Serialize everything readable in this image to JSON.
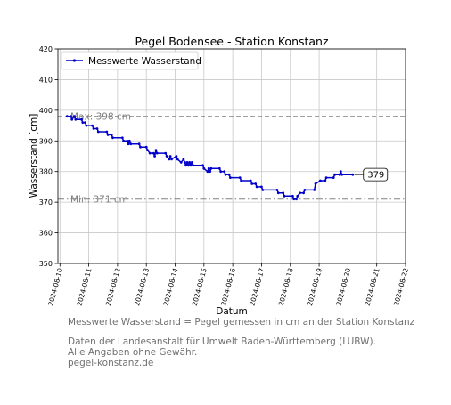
{
  "chart_data": {
    "type": "line",
    "title": "Pegel Bodensee - Station Konstanz",
    "xlabel": "Datum",
    "ylabel": "Wasserstand [cm]",
    "ylim": [
      350,
      420
    ],
    "yticks": [
      "350",
      "360",
      "370",
      "380",
      "390",
      "400",
      "410",
      "420"
    ],
    "xlim": [
      "2024-08-10",
      "2024-08-22"
    ],
    "xticks": [
      "2024-08-10",
      "2024-08-11",
      "2024-08-12",
      "2024-08-13",
      "2024-08-14",
      "2024-08-15",
      "2024-08-16",
      "2024-08-17",
      "2024-08-18",
      "2024-08-19",
      "2024-08-20",
      "2024-08-21",
      "2024-08-22"
    ],
    "grid": true,
    "legend_position": "top-left",
    "series": [
      {
        "name": "Messwerte Wasserstand",
        "color": "#0000cc",
        "marker": "dot",
        "points": [
          [
            "2024-08-10 06:00",
            398
          ],
          [
            "2024-08-10 09:00",
            398
          ],
          [
            "2024-08-10 10:00",
            397
          ],
          [
            "2024-08-10 12:00",
            398
          ],
          [
            "2024-08-10 13:00",
            397
          ],
          [
            "2024-08-10 18:00",
            397
          ],
          [
            "2024-08-10 19:00",
            396
          ],
          [
            "2024-08-10 21:00",
            396
          ],
          [
            "2024-08-10 22:00",
            395
          ],
          [
            "2024-08-11 03:00",
            395
          ],
          [
            "2024-08-11 04:00",
            394
          ],
          [
            "2024-08-11 07:00",
            394
          ],
          [
            "2024-08-11 08:00",
            393
          ],
          [
            "2024-08-11 15:00",
            393
          ],
          [
            "2024-08-11 16:00",
            392
          ],
          [
            "2024-08-11 19:00",
            392
          ],
          [
            "2024-08-11 20:00",
            391
          ],
          [
            "2024-08-12 04:00",
            391
          ],
          [
            "2024-08-12 05:00",
            390
          ],
          [
            "2024-08-12 08:00",
            390
          ],
          [
            "2024-08-12 09:00",
            389
          ],
          [
            "2024-08-12 10:00",
            390
          ],
          [
            "2024-08-12 11:00",
            389
          ],
          [
            "2024-08-12 18:00",
            389
          ],
          [
            "2024-08-12 19:00",
            388
          ],
          [
            "2024-08-13 00:00",
            388
          ],
          [
            "2024-08-13 01:00",
            387
          ],
          [
            "2024-08-13 03:00",
            386
          ],
          [
            "2024-08-13 06:00",
            386
          ],
          [
            "2024-08-13 07:00",
            385
          ],
          [
            "2024-08-13 08:00",
            387
          ],
          [
            "2024-08-13 09:00",
            386
          ],
          [
            "2024-08-13 16:00",
            386
          ],
          [
            "2024-08-13 17:00",
            385
          ],
          [
            "2024-08-13 19:00",
            384
          ],
          [
            "2024-08-13 20:00",
            385
          ],
          [
            "2024-08-13 21:00",
            384
          ],
          [
            "2024-08-14 01:00",
            385
          ],
          [
            "2024-08-14 02:00",
            384
          ],
          [
            "2024-08-14 05:00",
            383
          ],
          [
            "2024-08-14 07:00",
            384
          ],
          [
            "2024-08-14 08:00",
            383
          ],
          [
            "2024-08-14 09:00",
            382
          ],
          [
            "2024-08-14 10:00",
            383
          ],
          [
            "2024-08-14 11:00",
            382
          ],
          [
            "2024-08-14 12:00",
            383
          ],
          [
            "2024-08-14 13:00",
            382
          ],
          [
            "2024-08-14 14:00",
            383
          ],
          [
            "2024-08-14 15:00",
            382
          ],
          [
            "2024-08-14 23:00",
            382
          ],
          [
            "2024-08-15 00:00",
            381
          ],
          [
            "2024-08-15 03:00",
            380
          ],
          [
            "2024-08-15 04:00",
            381
          ],
          [
            "2024-08-15 05:00",
            380
          ],
          [
            "2024-08-15 06:00",
            381
          ],
          [
            "2024-08-15 13:00",
            381
          ],
          [
            "2024-08-15 14:00",
            380
          ],
          [
            "2024-08-15 17:00",
            380
          ],
          [
            "2024-08-15 18:00",
            379
          ],
          [
            "2024-08-15 21:00",
            379
          ],
          [
            "2024-08-15 22:00",
            378
          ],
          [
            "2024-08-16 06:00",
            378
          ],
          [
            "2024-08-16 07:00",
            377
          ],
          [
            "2024-08-16 15:00",
            377
          ],
          [
            "2024-08-16 16:00",
            376
          ],
          [
            "2024-08-16 19:00",
            376
          ],
          [
            "2024-08-16 20:00",
            375
          ],
          [
            "2024-08-17 00:00",
            375
          ],
          [
            "2024-08-17 01:00",
            374
          ],
          [
            "2024-08-17 13:00",
            374
          ],
          [
            "2024-08-17 14:00",
            373
          ],
          [
            "2024-08-17 18:00",
            373
          ],
          [
            "2024-08-17 19:00",
            372
          ],
          [
            "2024-08-18 02:00",
            372
          ],
          [
            "2024-08-18 03:00",
            371
          ],
          [
            "2024-08-18 05:00",
            371
          ],
          [
            "2024-08-18 06:00",
            372
          ],
          [
            "2024-08-18 08:00",
            373
          ],
          [
            "2024-08-18 11:00",
            373
          ],
          [
            "2024-08-18 12:00",
            374
          ],
          [
            "2024-08-18 20:00",
            374
          ],
          [
            "2024-08-18 21:00",
            376
          ],
          [
            "2024-08-19 01:00",
            377
          ],
          [
            "2024-08-19 05:00",
            377
          ],
          [
            "2024-08-19 06:00",
            378
          ],
          [
            "2024-08-19 12:00",
            378
          ],
          [
            "2024-08-19 13:00",
            379
          ],
          [
            "2024-08-19 17:00",
            379
          ],
          [
            "2024-08-19 18:00",
            380
          ],
          [
            "2024-08-19 19:00",
            379
          ],
          [
            "2024-08-20 04:00",
            379
          ]
        ]
      }
    ],
    "reference_lines": [
      {
        "value": 398,
        "label": "Max: 398 cm",
        "style": "dashed",
        "color": "#808080"
      },
      {
        "value": 371,
        "label": "Min: 371 cm",
        "style": "dashdot",
        "color": "#808080"
      }
    ],
    "current_value_label": "379"
  },
  "footer": {
    "description": "Messwerte Wasserstand = Pegel gemessen in cm an der Station Konstanz",
    "source": "Daten der Landesanstalt für Umwelt Baden-Württemberg (LUBW).",
    "disclaimer": "Alle Angaben ohne Gewähr.",
    "website": "pegel-konstanz.de"
  }
}
